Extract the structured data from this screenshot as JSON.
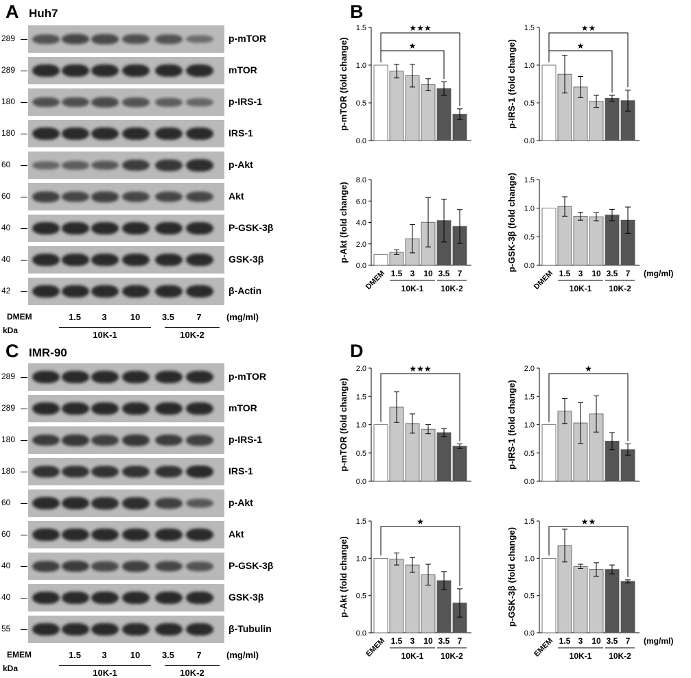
{
  "panels": {
    "A": {
      "letter": "A",
      "cell_line": "Huh7",
      "rows": [
        {
          "kda": "289",
          "protein": "p-mTOR"
        },
        {
          "kda": "289",
          "protein": "mTOR"
        },
        {
          "kda": "180",
          "protein": "p-IRS-1"
        },
        {
          "kda": "180",
          "protein": "IRS-1"
        },
        {
          "kda": "60",
          "protein": "p-Akt"
        },
        {
          "kda": "60",
          "protein": "Akt"
        },
        {
          "kda": "40",
          "protein": "P-GSK-3β"
        },
        {
          "kda": "40",
          "protein": "GSK-3β"
        },
        {
          "kda": "42",
          "protein": "β-Actin"
        }
      ],
      "control": "DMEM",
      "doses": [
        "1.5",
        "3",
        "10",
        "3.5",
        "7"
      ],
      "unit": "(mg/ml)",
      "kda_label": "kDa",
      "groups": [
        "10K-1",
        "10K-2"
      ]
    },
    "B": {
      "letter": "B"
    },
    "C": {
      "letter": "C",
      "cell_line": "IMR-90",
      "rows": [
        {
          "kda": "289",
          "protein": "p-mTOR"
        },
        {
          "kda": "289",
          "protein": "mTOR"
        },
        {
          "kda": "180",
          "protein": "p-IRS-1"
        },
        {
          "kda": "180",
          "protein": "IRS-1"
        },
        {
          "kda": "60",
          "protein": "p-Akt"
        },
        {
          "kda": "60",
          "protein": "Akt"
        },
        {
          "kda": "40",
          "protein": "P-GSK-3β"
        },
        {
          "kda": "40",
          "protein": "GSK-3β"
        },
        {
          "kda": "55",
          "protein": "β-Tubulin"
        }
      ],
      "control": "EMEM",
      "doses": [
        "1.5",
        "3",
        "10",
        "3.5",
        "7"
      ],
      "unit": "(mg/ml)",
      "kda_label": "kDa",
      "groups": [
        "10K-1",
        "10K-2"
      ]
    },
    "D": {
      "letter": "D"
    }
  },
  "chart_data": [
    {
      "panel": "B",
      "type": "bar",
      "categories": [
        "DMEM",
        "1.5",
        "3",
        "10",
        "3.5",
        "7"
      ],
      "values": [
        1.0,
        0.92,
        0.86,
        0.74,
        0.69,
        0.35
      ],
      "errors": [
        0.0,
        0.09,
        0.15,
        0.08,
        0.09,
        0.07
      ],
      "ylabel": "p-mTOR (fold change)",
      "ylim": [
        0,
        1.5
      ],
      "yticks": [
        "0.0",
        "0.5",
        "1.0",
        "1.5"
      ],
      "groups": [
        "10K-1",
        "10K-2"
      ],
      "unit": "",
      "significance": [
        {
          "to": "7",
          "label": "★★★"
        },
        {
          "to": "3.5",
          "label": "★"
        }
      ]
    },
    {
      "panel": "B",
      "type": "bar",
      "categories": [
        "DMEM",
        "1.5",
        "3",
        "10",
        "3.5",
        "7"
      ],
      "values": [
        1.0,
        0.88,
        0.71,
        0.52,
        0.56,
        0.53
      ],
      "errors": [
        0.0,
        0.25,
        0.14,
        0.08,
        0.04,
        0.14
      ],
      "ylabel": "p-IRS-1 (fold change)",
      "ylim": [
        0,
        1.5
      ],
      "yticks": [
        "0.0",
        "0.5",
        "1.0",
        "1.5"
      ],
      "groups": [
        "10K-1",
        "10K-2"
      ],
      "unit": "",
      "significance": [
        {
          "to": "7",
          "label": "★★"
        },
        {
          "to": "3.5",
          "label": "★"
        }
      ]
    },
    {
      "panel": "B",
      "type": "bar",
      "categories": [
        "DMEM",
        "1.5",
        "3",
        "10",
        "3.5",
        "7"
      ],
      "values": [
        1.0,
        1.22,
        2.48,
        4.02,
        4.18,
        3.62
      ],
      "errors": [
        0.0,
        0.22,
        1.32,
        2.3,
        2.0,
        1.58
      ],
      "ylabel": "p-Akt (fold change)",
      "ylim": [
        0,
        8
      ],
      "yticks": [
        "0.0",
        "2.0",
        "4.0",
        "6.0",
        "8.0"
      ],
      "groups": [
        "10K-1",
        "10K-2"
      ],
      "unit": "",
      "significance": []
    },
    {
      "panel": "B",
      "type": "bar",
      "categories": [
        "DMEM",
        "1.5",
        "3",
        "10",
        "3.5",
        "7"
      ],
      "values": [
        1.0,
        1.03,
        0.86,
        0.85,
        0.88,
        0.79
      ],
      "errors": [
        0.0,
        0.17,
        0.07,
        0.07,
        0.1,
        0.23
      ],
      "ylabel": "p-GSK-3β (fold change)",
      "ylim": [
        0,
        1.5
      ],
      "yticks": [
        "0.0",
        "0.5",
        "1.0",
        "1.5"
      ],
      "groups": [
        "10K-1",
        "10K-2"
      ],
      "unit": "(mg/ml)",
      "significance": []
    },
    {
      "panel": "D",
      "type": "bar",
      "categories": [
        "EMEM",
        "1.5",
        "3",
        "10",
        "3.5",
        "7"
      ],
      "values": [
        1.0,
        1.31,
        1.02,
        0.92,
        0.86,
        0.62
      ],
      "errors": [
        0.0,
        0.27,
        0.17,
        0.08,
        0.07,
        0.04
      ],
      "ylabel": "p-mTOR (fold change)",
      "ylim": [
        0,
        2
      ],
      "yticks": [
        "0.0",
        "0.5",
        "1.0",
        "1.5",
        "2.0"
      ],
      "groups": [
        "10K-1",
        "10K-2"
      ],
      "unit": "",
      "significance": [
        {
          "to": "7",
          "label": "★★★"
        }
      ]
    },
    {
      "panel": "D",
      "type": "bar",
      "categories": [
        "EMEM",
        "1.5",
        "3",
        "10",
        "3.5",
        "7"
      ],
      "values": [
        1.0,
        1.24,
        1.03,
        1.19,
        0.71,
        0.56
      ],
      "errors": [
        0.0,
        0.22,
        0.36,
        0.32,
        0.15,
        0.1
      ],
      "ylabel": "p-IRS-1 (fold change)",
      "ylim": [
        0,
        2
      ],
      "yticks": [
        "0.0",
        "0.5",
        "1.0",
        "1.5",
        "2.0"
      ],
      "groups": [
        "10K-1",
        "10K-2"
      ],
      "unit": "",
      "significance": [
        {
          "to": "7",
          "label": "★"
        }
      ]
    },
    {
      "panel": "D",
      "type": "bar",
      "categories": [
        "EMEM",
        "1.5",
        "3",
        "10",
        "3.5",
        "7"
      ],
      "values": [
        1.0,
        0.99,
        0.91,
        0.78,
        0.7,
        0.4
      ],
      "errors": [
        0.0,
        0.08,
        0.1,
        0.14,
        0.12,
        0.19
      ],
      "ylabel": "p-Akt (fold change)",
      "ylim": [
        0,
        1.5
      ],
      "yticks": [
        "0.0",
        "0.5",
        "1.0",
        "1.5"
      ],
      "groups": [
        "10K-1",
        "10K-2"
      ],
      "unit": "",
      "significance": [
        {
          "to": "7",
          "label": "★"
        }
      ]
    },
    {
      "panel": "D",
      "type": "bar",
      "categories": [
        "EMEM",
        "1.5",
        "3",
        "10",
        "3.5",
        "7"
      ],
      "values": [
        1.0,
        1.17,
        0.89,
        0.85,
        0.85,
        0.69
      ],
      "errors": [
        0.0,
        0.22,
        0.03,
        0.09,
        0.06,
        0.02
      ],
      "ylabel": "p-GSK-3β (fold change)",
      "ylim": [
        0,
        1.5
      ],
      "yticks": [
        "0.0",
        "0.5",
        "1.0",
        "1.5"
      ],
      "groups": [
        "10K-1",
        "10K-2"
      ],
      "unit": "(mg/ml)",
      "significance": [
        {
          "to": "7",
          "label": "★★"
        }
      ]
    }
  ],
  "colors": {
    "control": "#ffffff",
    "group1": "#c8c8c8",
    "group2": "#555555",
    "band": "#2a2a2a",
    "membrane": "#b9b9b9"
  }
}
